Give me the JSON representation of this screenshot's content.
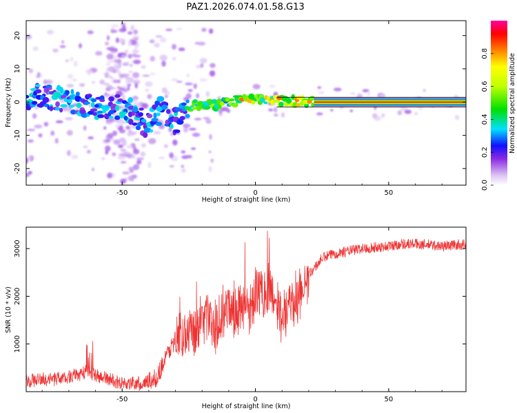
{
  "title": "PAZ1.2026.074.01.58.G13",
  "chart_data": [
    {
      "type": "heatmap",
      "name": "spectrogram",
      "xlabel": "Height of straight line (km)",
      "ylabel": "Frequency (Hz)",
      "xlim": [
        -86,
        79
      ],
      "ylim": [
        -25,
        24.5
      ],
      "xticks": [
        -50,
        0,
        50
      ],
      "xtick_labels": [
        "-50",
        "0",
        "50"
      ],
      "yticks": [
        20,
        10,
        0,
        -10,
        -20
      ],
      "ytick_labels": [
        "20",
        "10",
        "0",
        "-10",
        "-20"
      ],
      "ridge": [
        {
          "x": -85,
          "f": 1.5
        },
        {
          "x": -75,
          "f": 1.5
        },
        {
          "x": -65,
          "f": -0.5
        },
        {
          "x": -55,
          "f": -2.5
        },
        {
          "x": -50,
          "f": -1.0
        },
        {
          "x": -45,
          "f": -4.0
        },
        {
          "x": -40,
          "f": -7.0
        },
        {
          "x": -35,
          "f": -1.5
        },
        {
          "x": -30,
          "f": -6.0
        },
        {
          "x": -25,
          "f": -1.5
        },
        {
          "x": -20,
          "f": -0.5
        },
        {
          "x": -15,
          "f": -1.0
        },
        {
          "x": -10,
          "f": 0.0
        },
        {
          "x": -5,
          "f": 0.8
        },
        {
          "x": 0,
          "f": 0.5
        },
        {
          "x": 10,
          "f": 0.5
        },
        {
          "x": 20,
          "f": 0.2
        },
        {
          "x": 30,
          "f": 0.0
        },
        {
          "x": 78,
          "f": 0.0
        }
      ]
    },
    {
      "type": "colorbar",
      "label": "Normalized spectral amplitude",
      "range": [
        0,
        1
      ],
      "ticks": [
        0.0,
        0.2,
        0.4,
        0.6,
        0.8
      ],
      "tick_labels": [
        "0.0",
        "0.2",
        "0.4",
        "0.6",
        "0.8"
      ]
    },
    {
      "type": "line",
      "name": "snr",
      "xlabel": "Height of straight line (km)",
      "ylabel": "SNR (10 * v/v)",
      "xlim": [
        -86,
        79
      ],
      "ylim": [
        0,
        3450
      ],
      "xticks": [
        -50,
        0,
        50
      ],
      "xtick_labels": [
        "-50",
        "0",
        "50"
      ],
      "yticks": [
        1000,
        2000,
        3000
      ],
      "ytick_labels": [
        "1000",
        "2000",
        "3000"
      ],
      "color": "#ee3333",
      "x": [
        -86,
        -80,
        -75,
        -70,
        -65,
        -62,
        -60,
        -55,
        -50,
        -45,
        -40,
        -37,
        -35,
        -32,
        -30,
        -28,
        -26,
        -24,
        -22,
        -20,
        -18,
        -16,
        -14,
        -12,
        -10,
        -8,
        -6,
        -4,
        -2,
        0,
        2,
        4,
        6,
        8,
        10,
        12,
        14,
        16,
        18,
        20,
        23,
        25,
        30,
        35,
        40,
        50,
        55,
        60,
        65,
        70,
        75,
        79
      ],
      "y": [
        200,
        260,
        280,
        300,
        380,
        420,
        340,
        260,
        180,
        160,
        200,
        300,
        550,
        900,
        1100,
        1250,
        1200,
        1350,
        1250,
        1500,
        1550,
        1300,
        1500,
        1650,
        1750,
        1600,
        1800,
        1850,
        1700,
        2000,
        2150,
        2100,
        2150,
        1850,
        1500,
        1700,
        1900,
        2000,
        2200,
        2450,
        2650,
        2800,
        2900,
        2950,
        3000,
        3050,
        3100,
        3100,
        3080,
        3050,
        3080,
        3080
      ]
    }
  ]
}
